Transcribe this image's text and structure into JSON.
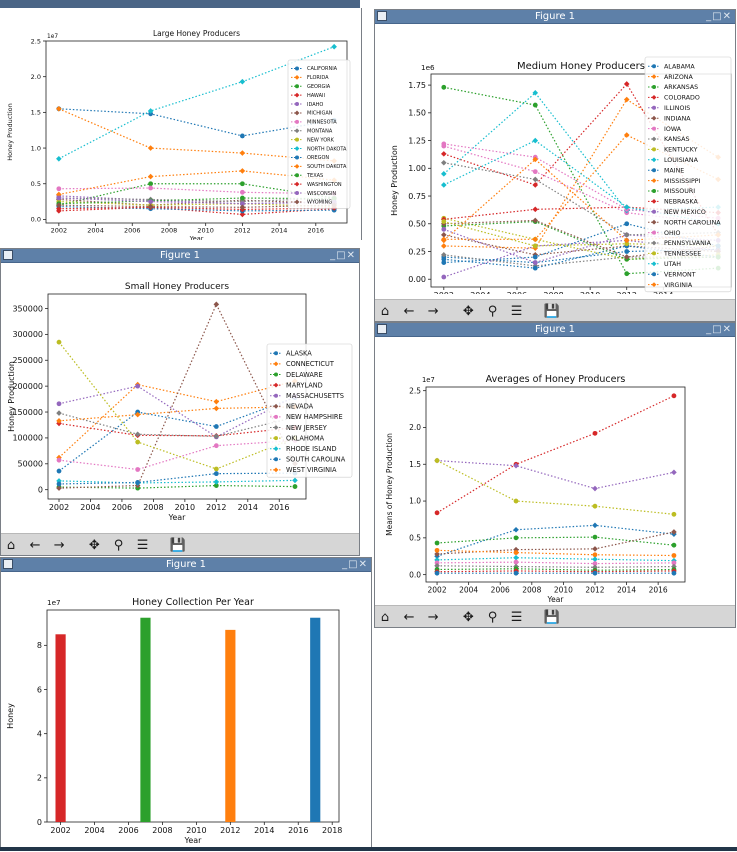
{
  "windows": {
    "large": {
      "title": "",
      "plot_title": "Large Honey Producers",
      "ylabel": "Honey Production",
      "xlabel": "Year",
      "exp": "1e7"
    },
    "medium": {
      "title": "Figure 1",
      "plot_title": "Medium Honey Producers",
      "ylabel": "Honey Production",
      "xlabel": "Year",
      "exp": "1e6"
    },
    "small": {
      "title": "Figure 1",
      "plot_title": "Small Honey Producers",
      "ylabel": "Honey Production",
      "xlabel": "Year"
    },
    "averages": {
      "title": "Figure 1",
      "plot_title": "Averages of Honey Producers",
      "ylabel": "Means of Honey Production",
      "xlabel": "Year",
      "exp": "1e7"
    },
    "collection": {
      "title": "Figure 1",
      "plot_title": "Honey Collection Per Year",
      "ylabel": "Honey",
      "xlabel": "Year",
      "exp": "1e7"
    }
  },
  "toolbar": {
    "home": "⌂",
    "back": "←",
    "forward": "→",
    "pan": "✥",
    "zoom": "⚲",
    "config": "☰",
    "save": "💾"
  },
  "titlebar_controls": "_□✕",
  "chart_data": [
    {
      "id": "large",
      "type": "line",
      "title": "Large Honey Producers",
      "xlabel": "Year",
      "ylabel": "Honey Production",
      "x": [
        2002,
        2007,
        2012,
        2017
      ],
      "xticks": [
        2002,
        2004,
        2006,
        2008,
        2010,
        2012,
        2014,
        2016
      ],
      "xlim": [
        2001.3,
        2017.7
      ],
      "ylim": [
        -0.05,
        2.5
      ],
      "yticks": [
        0.0,
        0.5,
        1.0,
        1.5,
        2.0,
        2.5
      ],
      "ytick_labels": [
        "0.0",
        "0.5",
        "1.0",
        "1.5",
        "2.0",
        "2.5"
      ],
      "y_exponent": "1e7",
      "series": [
        {
          "name": "CALIFORNIA",
          "color": "#1f77b4",
          "values": [
            1.55,
            1.48,
            1.17,
            1.39
          ]
        },
        {
          "name": "FLORIDA",
          "color": "#ff7f0e",
          "values": [
            1.55,
            1.0,
            0.93,
            0.82
          ]
        },
        {
          "name": "GEORGIA",
          "color": "#2ca02c",
          "values": [
            0.2,
            0.5,
            0.5,
            0.3
          ]
        },
        {
          "name": "HAWAII",
          "color": "#d62728",
          "values": [
            0.12,
            0.17,
            0.07,
            0.15
          ]
        },
        {
          "name": "IDAHO",
          "color": "#9467bd",
          "values": [
            0.33,
            0.27,
            0.22,
            0.25
          ]
        },
        {
          "name": "MICHIGAN",
          "color": "#8c564b",
          "values": [
            0.28,
            0.2,
            0.27,
            0.22
          ]
        },
        {
          "name": "MINNESOTA",
          "color": "#e377c2",
          "values": [
            0.43,
            0.44,
            0.38,
            0.36
          ]
        },
        {
          "name": "MONTANA",
          "color": "#7f7f7f",
          "values": [
            0.3,
            0.28,
            0.25,
            0.3
          ]
        },
        {
          "name": "NEW YORK",
          "color": "#bcbd22",
          "values": [
            0.25,
            0.2,
            0.22,
            0.18
          ]
        },
        {
          "name": "NORTH DAKOTA",
          "color": "#17becf",
          "values": [
            0.85,
            1.52,
            1.93,
            2.42
          ]
        },
        {
          "name": "OREGON",
          "color": "#1f77b4",
          "values": [
            0.18,
            0.15,
            0.12,
            0.13
          ]
        },
        {
          "name": "SOUTH DAKOTA",
          "color": "#ff7f0e",
          "values": [
            0.35,
            0.6,
            0.68,
            0.55
          ]
        },
        {
          "name": "TEXAS",
          "color": "#2ca02c",
          "values": [
            0.22,
            0.26,
            0.3,
            0.29
          ]
        },
        {
          "name": "WASHINGTON",
          "color": "#d62728",
          "values": [
            0.15,
            0.17,
            0.14,
            0.16
          ]
        },
        {
          "name": "WISCONSIN",
          "color": "#9467bd",
          "values": [
            0.3,
            0.25,
            0.22,
            0.24
          ]
        },
        {
          "name": "WYOMING",
          "color": "#8c564b",
          "values": [
            0.2,
            0.18,
            0.17,
            0.2
          ]
        }
      ]
    },
    {
      "id": "medium",
      "type": "line",
      "title": "Medium Honey Producers",
      "xlabel": "Year",
      "ylabel": "Honey Production",
      "x": [
        2002,
        2007,
        2012,
        2017
      ],
      "xticks": [
        2002,
        2004,
        2006,
        2008,
        2010,
        2012,
        2014
      ],
      "xlim": [
        2001.3,
        2017.7
      ],
      "ylim": [
        -0.07,
        1.85
      ],
      "yticks": [
        0.0,
        0.25,
        0.5,
        0.75,
        1.0,
        1.25,
        1.5,
        1.75
      ],
      "ytick_labels": [
        "0.00",
        "0.25",
        "0.50",
        "0.75",
        "1.00",
        "1.25",
        "1.50",
        "1.75"
      ],
      "y_exponent": "1e6",
      "series": [
        {
          "name": "ALABAMA",
          "color": "#1f77b4",
          "values": [
            0.2,
            0.15,
            0.25,
            0.27
          ]
        },
        {
          "name": "ARIZONA",
          "color": "#ff7f0e",
          "values": [
            0.3,
            0.28,
            1.62,
            1.1
          ]
        },
        {
          "name": "ARKANSAS",
          "color": "#2ca02c",
          "values": [
            1.73,
            1.57,
            0.05,
            0.1
          ]
        },
        {
          "name": "COLORADO",
          "color": "#d62728",
          "values": [
            1.13,
            0.85,
            1.76,
            0.4
          ]
        },
        {
          "name": "ILLINOIS",
          "color": "#9467bd",
          "values": [
            0.02,
            0.3,
            0.35,
            0.26
          ]
        },
        {
          "name": "INDIANA",
          "color": "#8c564b",
          "values": [
            0.4,
            0.22,
            0.3,
            0.25
          ]
        },
        {
          "name": "IOWA",
          "color": "#e377c2",
          "values": [
            1.2,
            0.97,
            0.6,
            0.5
          ]
        },
        {
          "name": "KANSAS",
          "color": "#7f7f7f",
          "values": [
            0.22,
            0.12,
            0.2,
            0.2
          ]
        },
        {
          "name": "KENTUCKY",
          "color": "#bcbd22",
          "values": [
            0.55,
            0.36,
            0.18,
            0.22
          ]
        },
        {
          "name": "LOUISIANA",
          "color": "#17becf",
          "values": [
            0.95,
            1.68,
            0.62,
            0.65
          ]
        },
        {
          "name": "MAINE",
          "color": "#1f77b4",
          "values": [
            0.18,
            0.1,
            0.3,
            0.2
          ]
        },
        {
          "name": "MISSISSIPPI",
          "color": "#ff7f0e",
          "values": [
            0.36,
            0.36,
            1.3,
            0.9
          ]
        },
        {
          "name": "MISSOURI",
          "color": "#2ca02c",
          "values": [
            0.48,
            0.52,
            0.18,
            0.2
          ]
        },
        {
          "name": "NEBRASKA",
          "color": "#d62728",
          "values": [
            0.54,
            0.63,
            0.65,
            0.6
          ]
        },
        {
          "name": "NEW MEXICO",
          "color": "#9467bd",
          "values": [
            0.45,
            0.15,
            0.4,
            0.35
          ]
        },
        {
          "name": "NORTH CAROLINA",
          "color": "#8c564b",
          "values": [
            0.5,
            0.53,
            0.2,
            0.3
          ]
        },
        {
          "name": "OHIO",
          "color": "#e377c2",
          "values": [
            1.22,
            1.1,
            0.63,
            0.55
          ]
        },
        {
          "name": "PENNSYLVANIA",
          "color": "#7f7f7f",
          "values": [
            1.05,
            0.9,
            0.4,
            0.42
          ]
        },
        {
          "name": "TENNESSEE",
          "color": "#bcbd22",
          "values": [
            0.52,
            0.3,
            0.32,
            0.3
          ]
        },
        {
          "name": "UTAH",
          "color": "#17becf",
          "values": [
            0.85,
            1.25,
            0.65,
            0.5
          ]
        },
        {
          "name": "VERMONT",
          "color": "#1f77b4",
          "values": [
            0.15,
            0.2,
            0.5,
            0.3
          ]
        },
        {
          "name": "VIRGINIA",
          "color": "#ff7f0e",
          "values": [
            0.35,
            1.08,
            0.35,
            0.4
          ]
        }
      ]
    },
    {
      "id": "small",
      "type": "line",
      "title": "Small Honey Producers",
      "xlabel": "Year",
      "ylabel": "Honey Production",
      "x": [
        2002,
        2007,
        2012,
        2017
      ],
      "xticks": [
        2002,
        2004,
        2006,
        2008,
        2010,
        2012,
        2014,
        2016
      ],
      "xlim": [
        2001.3,
        2017.7
      ],
      "ylim": [
        -18000,
        378000
      ],
      "yticks": [
        0,
        50000,
        100000,
        150000,
        200000,
        250000,
        300000,
        350000
      ],
      "ytick_labels": [
        "0",
        "50000",
        "100000",
        "150000",
        "200000",
        "250000",
        "300000",
        "350000"
      ],
      "series": [
        {
          "name": "ALASKA",
          "color": "#1f77b4",
          "values": [
            36000,
            150000,
            122000,
            178000
          ]
        },
        {
          "name": "CONNECTICUT",
          "color": "#ff7f0e",
          "values": [
            62000,
            203000,
            170000,
            210000
          ]
        },
        {
          "name": "DELAWARE",
          "color": "#2ca02c",
          "values": [
            5000,
            3000,
            8000,
            6000
          ]
        },
        {
          "name": "MARYLAND",
          "color": "#d62728",
          "values": [
            128000,
            105000,
            104000,
            120000
          ]
        },
        {
          "name": "MASSACHUSETTS",
          "color": "#9467bd",
          "values": [
            166000,
            200000,
            102000,
            180000
          ]
        },
        {
          "name": "NEVADA",
          "color": "#8c564b",
          "values": [
            3000,
            8000,
            358000,
            50000
          ]
        },
        {
          "name": "NEW HAMPSHIRE",
          "color": "#e377c2",
          "values": [
            57000,
            39000,
            85000,
            95000
          ]
        },
        {
          "name": "NEW JERSEY",
          "color": "#7f7f7f",
          "values": [
            148000,
            107000,
            103000,
            140000
          ]
        },
        {
          "name": "OKLAHOMA",
          "color": "#bcbd22",
          "values": [
            285000,
            92000,
            40000,
            100000
          ]
        },
        {
          "name": "RHODE ISLAND",
          "color": "#17becf",
          "values": [
            17000,
            13000,
            15000,
            18000
          ]
        },
        {
          "name": "SOUTH CAROLINA",
          "color": "#1f77b4",
          "values": [
            11000,
            14000,
            31000,
            32000
          ]
        },
        {
          "name": "WEST VIRGINIA",
          "color": "#ff7f0e",
          "values": [
            133000,
            145000,
            157000,
            160000
          ]
        }
      ]
    },
    {
      "id": "averages",
      "type": "line",
      "title": "Averages of Honey Producers",
      "xlabel": "Year",
      "ylabel": "Means of Honey Production",
      "x": [
        2002,
        2007,
        2012,
        2017
      ],
      "xticks": [
        2002,
        2004,
        2006,
        2008,
        2010,
        2012,
        2014,
        2016
      ],
      "xlim": [
        2001.3,
        2017.7
      ],
      "ylim": [
        -0.1,
        2.55
      ],
      "yticks": [
        0.0,
        0.5,
        1.0,
        1.5,
        2.0,
        2.5
      ],
      "ytick_labels": [
        "0.0",
        "0.5",
        "1.0",
        "1.5",
        "2.0",
        "2.5"
      ],
      "y_exponent": "1e7",
      "series": [
        {
          "color": "#d62728",
          "values": [
            0.84,
            1.5,
            1.92,
            2.43
          ]
        },
        {
          "color": "#9467bd",
          "values": [
            1.55,
            1.48,
            1.17,
            1.39
          ]
        },
        {
          "color": "#bcbd22",
          "values": [
            1.55,
            1.0,
            0.93,
            0.82
          ]
        },
        {
          "color": "#1f77b4",
          "values": [
            0.25,
            0.61,
            0.67,
            0.55
          ]
        },
        {
          "color": "#2ca02c",
          "values": [
            0.43,
            0.5,
            0.51,
            0.4
          ]
        },
        {
          "color": "#8c564b",
          "values": [
            0.28,
            0.34,
            0.35,
            0.58
          ]
        },
        {
          "color": "#ff7f0e",
          "values": [
            0.33,
            0.3,
            0.27,
            0.26
          ]
        },
        {
          "color": "#17becf",
          "values": [
            0.2,
            0.23,
            0.21,
            0.19
          ]
        },
        {
          "color": "#e377c2",
          "values": [
            0.16,
            0.17,
            0.15,
            0.16
          ]
        },
        {
          "color": "#7f7f7f",
          "values": [
            0.12,
            0.11,
            0.1,
            0.11
          ]
        },
        {
          "color": "#2ca02c",
          "values": [
            0.07,
            0.08,
            0.06,
            0.07
          ]
        },
        {
          "color": "#d62728",
          "values": [
            0.04,
            0.05,
            0.04,
            0.05
          ]
        },
        {
          "color": "#1f77b4",
          "values": [
            0.02,
            0.02,
            0.02,
            0.02
          ]
        }
      ]
    },
    {
      "id": "collection",
      "type": "bar",
      "title": "Honey Collection Per Year",
      "xlabel": "Year",
      "ylabel": "Honey",
      "xticks": [
        2002,
        2004,
        2006,
        2008,
        2010,
        2012,
        2014,
        2016,
        2018
      ],
      "xlim": [
        2001.2,
        2018.4
      ],
      "ylim": [
        0,
        9.6
      ],
      "yticks": [
        0,
        2,
        4,
        6,
        8
      ],
      "ytick_labels": [
        "0",
        "2",
        "4",
        "6",
        "8"
      ],
      "y_exponent": "1e7",
      "bars": [
        {
          "x": 2002,
          "value": 8.5,
          "color": "#d62728"
        },
        {
          "x": 2007,
          "value": 9.25,
          "color": "#2ca02c"
        },
        {
          "x": 2012,
          "value": 8.7,
          "color": "#ff7f0e"
        },
        {
          "x": 2017,
          "value": 9.25,
          "color": "#1f77b4"
        }
      ]
    }
  ]
}
